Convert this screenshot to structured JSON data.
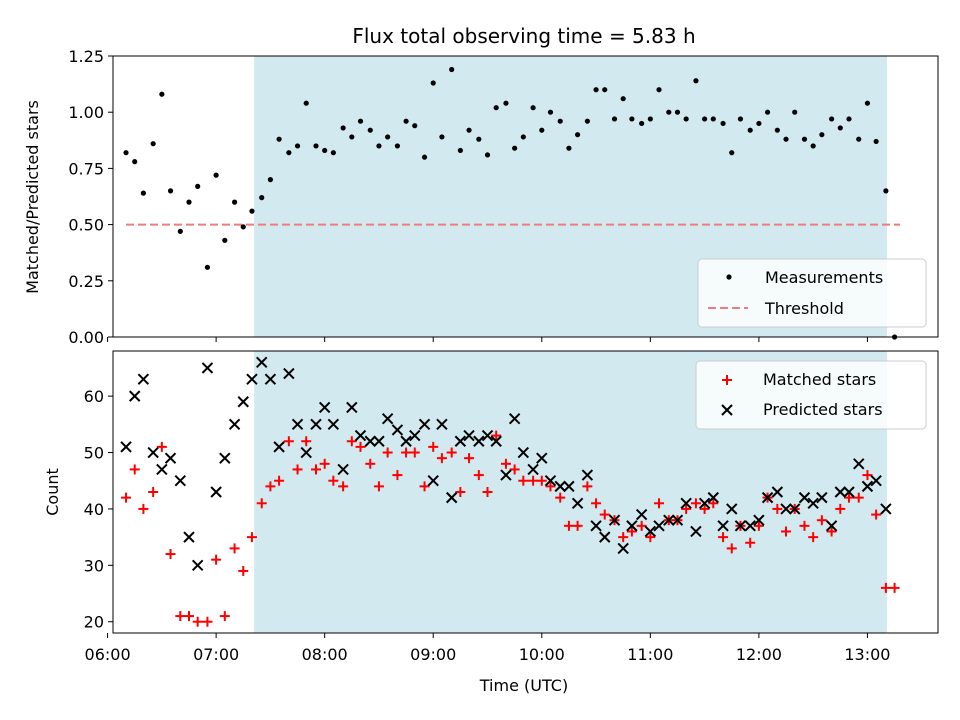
{
  "chart_data": [
    {
      "type": "scatter",
      "title": "Flux total observing time = 5.83 h",
      "xlabel": "",
      "ylabel": "Matched/Predicted stars",
      "xlim": [
        6.05,
        13.65
      ],
      "ylim": [
        0.0,
        1.25
      ],
      "yticks": [
        0.0,
        0.25,
        0.5,
        0.75,
        1.0,
        1.25
      ],
      "ytick_labels": [
        "0.00",
        "0.25",
        "0.50",
        "0.75",
        "1.00",
        "1.25"
      ],
      "xticks": [
        6,
        7,
        8,
        9,
        10,
        11,
        12,
        13
      ],
      "shaded_region": {
        "x_start": 7.35,
        "x_end": 13.18,
        "color": "#d3e9f0"
      },
      "threshold": {
        "name": "Threshold",
        "value": 0.5,
        "x_start": 6.17,
        "x_end": 13.3,
        "color": "#f07b7b"
      },
      "legend": {
        "position": "lower-right",
        "entries": [
          "Measurements",
          "Threshold"
        ]
      },
      "series": [
        {
          "name": "Measurements",
          "color": "#000000",
          "x": [
            6.17,
            6.25,
            6.33,
            6.42,
            6.5,
            6.58,
            6.67,
            6.75,
            6.83,
            6.92,
            7.0,
            7.08,
            7.17,
            7.25,
            7.33,
            7.42,
            7.5,
            7.58,
            7.67,
            7.75,
            7.83,
            7.92,
            8.0,
            8.08,
            8.17,
            8.25,
            8.33,
            8.42,
            8.5,
            8.58,
            8.67,
            8.75,
            8.83,
            8.92,
            9.0,
            9.08,
            9.17,
            9.25,
            9.33,
            9.42,
            9.5,
            9.58,
            9.67,
            9.75,
            9.83,
            9.92,
            10.0,
            10.08,
            10.17,
            10.25,
            10.33,
            10.42,
            10.5,
            10.58,
            10.67,
            10.75,
            10.83,
            10.92,
            11.0,
            11.08,
            11.17,
            11.25,
            11.33,
            11.42,
            11.5,
            11.58,
            11.67,
            11.75,
            11.83,
            11.92,
            12.0,
            12.08,
            12.17,
            12.25,
            12.33,
            12.42,
            12.5,
            12.58,
            12.67,
            12.75,
            12.83,
            12.92,
            13.0,
            13.08,
            13.17,
            13.25
          ],
          "y": [
            0.82,
            0.78,
            0.64,
            0.86,
            1.08,
            0.65,
            0.47,
            0.6,
            0.67,
            0.31,
            0.72,
            0.43,
            0.6,
            0.49,
            0.56,
            0.62,
            0.7,
            0.88,
            0.82,
            0.85,
            1.04,
            0.85,
            0.83,
            0.82,
            0.93,
            0.89,
            0.96,
            0.92,
            0.85,
            0.89,
            0.85,
            0.96,
            0.94,
            0.8,
            1.13,
            0.89,
            1.19,
            0.83,
            0.92,
            0.88,
            0.81,
            1.02,
            1.04,
            0.84,
            0.89,
            1.02,
            0.92,
            1.0,
            0.96,
            0.84,
            0.9,
            0.96,
            1.1,
            1.1,
            0.97,
            1.06,
            0.97,
            0.95,
            0.97,
            1.1,
            1.0,
            1.0,
            0.97,
            1.14,
            0.97,
            0.97,
            0.95,
            0.82,
            0.97,
            0.92,
            0.95,
            1.0,
            0.92,
            0.88,
            1.0,
            0.88,
            0.85,
            0.9,
            0.97,
            0.93,
            0.97,
            0.88,
            1.04,
            0.87,
            0.65,
            0.0
          ]
        }
      ]
    },
    {
      "type": "scatter",
      "title": "",
      "xlabel": "Time (UTC)",
      "ylabel": "Count",
      "xlim": [
        6.05,
        13.65
      ],
      "ylim": [
        18.0,
        68.0
      ],
      "yticks": [
        20,
        30,
        40,
        50,
        60
      ],
      "ytick_labels": [
        "20",
        "30",
        "40",
        "50",
        "60"
      ],
      "xticks": [
        6,
        7,
        8,
        9,
        10,
        11,
        12,
        13
      ],
      "xtick_labels": [
        "06:00",
        "07:00",
        "08:00",
        "09:00",
        "10:00",
        "11:00",
        "12:00",
        "13:00"
      ],
      "shaded_region": {
        "x_start": 7.35,
        "x_end": 13.18,
        "color": "#d3e9f0"
      },
      "legend": {
        "position": "top-right",
        "entries": [
          "Matched stars",
          "Predicted stars"
        ]
      },
      "series": [
        {
          "name": "Matched stars",
          "marker": "plus",
          "color": "#ff0000",
          "x": [
            6.17,
            6.25,
            6.33,
            6.42,
            6.5,
            6.58,
            6.67,
            6.75,
            6.83,
            6.92,
            7.0,
            7.08,
            7.17,
            7.25,
            7.33,
            7.42,
            7.5,
            7.58,
            7.67,
            7.75,
            7.83,
            7.92,
            8.0,
            8.08,
            8.17,
            8.25,
            8.33,
            8.42,
            8.5,
            8.58,
            8.67,
            8.75,
            8.83,
            8.92,
            9.0,
            9.08,
            9.17,
            9.25,
            9.33,
            9.42,
            9.5,
            9.58,
            9.67,
            9.75,
            9.83,
            9.92,
            10.0,
            10.08,
            10.17,
            10.25,
            10.33,
            10.42,
            10.5,
            10.58,
            10.67,
            10.75,
            10.83,
            10.92,
            11.0,
            11.08,
            11.17,
            11.25,
            11.33,
            11.42,
            11.5,
            11.58,
            11.67,
            11.75,
            11.83,
            11.92,
            12.0,
            12.08,
            12.17,
            12.25,
            12.33,
            12.42,
            12.5,
            12.58,
            12.67,
            12.75,
            12.83,
            12.92,
            13.0,
            13.08,
            13.17,
            13.25
          ],
          "y": [
            42,
            47,
            40,
            43,
            51,
            32,
            21,
            21,
            20,
            20,
            31,
            21,
            33,
            29,
            35,
            41,
            44,
            45,
            52,
            47,
            52,
            47,
            48,
            45,
            44,
            52,
            51,
            48,
            44,
            50,
            46,
            50,
            50,
            44,
            51,
            49,
            50,
            43,
            49,
            46,
            43,
            53,
            48,
            47,
            45,
            45,
            45,
            44,
            42,
            37,
            37,
            44,
            41,
            39,
            38,
            35,
            36,
            37,
            35,
            41,
            38,
            38,
            40,
            41,
            40,
            41,
            35,
            33,
            37,
            34,
            37,
            42,
            40,
            36,
            40,
            37,
            35,
            38,
            36,
            40,
            42,
            42,
            46,
            39,
            26,
            26
          ]
        },
        {
          "name": "Predicted stars",
          "marker": "x",
          "color": "#000000",
          "x": [
            6.17,
            6.25,
            6.33,
            6.42,
            6.5,
            6.58,
            6.67,
            6.75,
            6.83,
            6.92,
            7.0,
            7.08,
            7.17,
            7.25,
            7.33,
            7.42,
            7.5,
            7.58,
            7.67,
            7.75,
            7.83,
            7.92,
            8.0,
            8.08,
            8.17,
            8.25,
            8.33,
            8.42,
            8.5,
            8.58,
            8.67,
            8.75,
            8.83,
            8.92,
            9.0,
            9.08,
            9.17,
            9.25,
            9.33,
            9.42,
            9.5,
            9.58,
            9.67,
            9.75,
            9.83,
            9.92,
            10.0,
            10.08,
            10.17,
            10.25,
            10.33,
            10.42,
            10.5,
            10.58,
            10.67,
            10.75,
            10.83,
            10.92,
            11.0,
            11.08,
            11.17,
            11.25,
            11.33,
            11.42,
            11.5,
            11.58,
            11.67,
            11.75,
            11.83,
            11.92,
            12.0,
            12.08,
            12.17,
            12.25,
            12.33,
            12.42,
            12.5,
            12.58,
            12.67,
            12.75,
            12.83,
            12.92,
            13.0,
            13.08,
            13.17
          ],
          "y": [
            51,
            60,
            63,
            50,
            47,
            49,
            45,
            35,
            30,
            65,
            43,
            49,
            55,
            59,
            63,
            66,
            63,
            51,
            64,
            55,
            50,
            55,
            58,
            55,
            47,
            58,
            53,
            52,
            52,
            56,
            54,
            52,
            53,
            55,
            45,
            55,
            42,
            52,
            53,
            52,
            53,
            52,
            46,
            56,
            50,
            47,
            49,
            45,
            44,
            44,
            41,
            46,
            37,
            35,
            38,
            33,
            37,
            39,
            36,
            37,
            38,
            38,
            41,
            36,
            41,
            42,
            37,
            40,
            37,
            37,
            38,
            42,
            43,
            40,
            40,
            42,
            41,
            42,
            37,
            43,
            43,
            48,
            44,
            45,
            40
          ]
        }
      ]
    }
  ]
}
